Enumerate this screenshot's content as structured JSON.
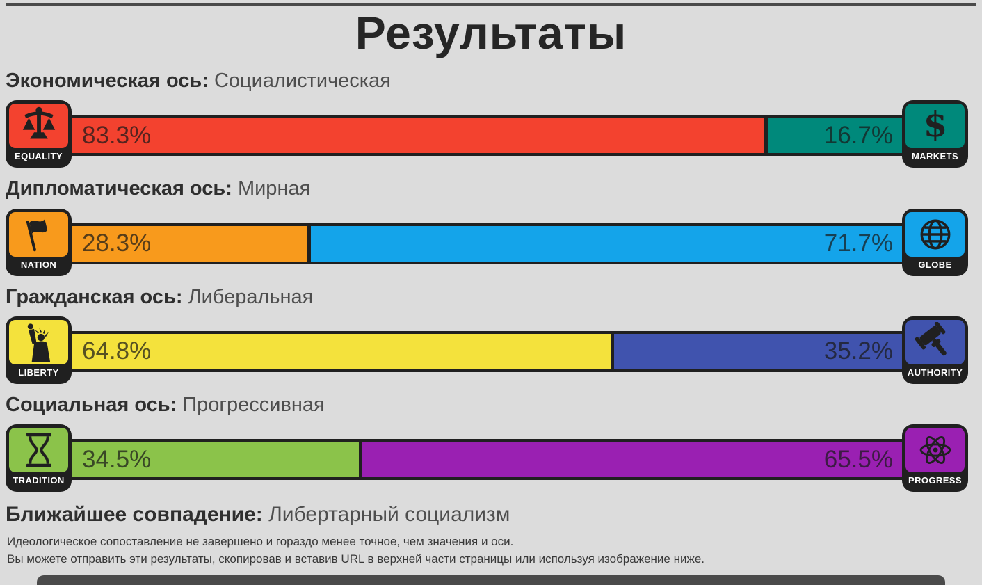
{
  "page": {
    "title": "Результаты"
  },
  "axes": [
    {
      "heading": "Экономическая ось:",
      "result": "Социалистическая",
      "left": {
        "label": "EQUALITY",
        "value": "83.3%",
        "percent": 83.3,
        "color": "#f3422f",
        "icon": "scales-icon"
      },
      "right": {
        "label": "MARKETS",
        "value": "16.7%",
        "percent": 16.7,
        "color": "#00897b",
        "icon": "dollar-icon"
      }
    },
    {
      "heading": "Дипломатическая ось:",
      "result": "Мирная",
      "left": {
        "label": "NATION",
        "value": "28.3%",
        "percent": 28.3,
        "color": "#f89a1c",
        "icon": "flag-icon"
      },
      "right": {
        "label": "GLOBE",
        "value": "71.7%",
        "percent": 71.7,
        "color": "#14a4ea",
        "icon": "globe-icon"
      }
    },
    {
      "heading": "Гражданская ось:",
      "result": "Либеральная",
      "left": {
        "label": "LIBERTY",
        "value": "64.8%",
        "percent": 64.8,
        "color": "#f4e23c",
        "icon": "statue-of-liberty-icon"
      },
      "right": {
        "label": "AUTHORITY",
        "value": "35.2%",
        "percent": 35.2,
        "color": "#4053ae",
        "icon": "gavel-icon"
      }
    },
    {
      "heading": "Социальная ось:",
      "result": "Прогрессивная",
      "left": {
        "label": "TRADITION",
        "value": "34.5%",
        "percent": 34.5,
        "color": "#8bc34a",
        "icon": "hourglass-icon"
      },
      "right": {
        "label": "PROGRESS",
        "value": "65.5%",
        "percent": 65.5,
        "color": "#9a20b2",
        "icon": "atom-icon"
      }
    }
  ],
  "closest_match": {
    "heading": "Ближайшее совпадение:",
    "result": "Либертарный социализм"
  },
  "notes": [
    "Идеологическое сопоставление не завершено и гораздо менее точное, чем значения и оси.",
    "Вы можете отправить эти результаты, скопировав и вставив URL в верхней части страницы или используя изображение ниже."
  ],
  "chart_data": {
    "type": "bar",
    "categories": [
      "Экономическая ось",
      "Дипломатическая ось",
      "Гражданская ось",
      "Социальная ось"
    ],
    "series": [
      {
        "name": "left",
        "labels": [
          "EQUALITY",
          "NATION",
          "LIBERTY",
          "TRADITION"
        ],
        "values": [
          83.3,
          28.3,
          64.8,
          34.5
        ]
      },
      {
        "name": "right",
        "labels": [
          "MARKETS",
          "GLOBE",
          "AUTHORITY",
          "PROGRESS"
        ],
        "values": [
          16.7,
          71.7,
          35.2,
          65.5
        ]
      }
    ],
    "title": "Результаты",
    "xlim": [
      0,
      100
    ]
  }
}
